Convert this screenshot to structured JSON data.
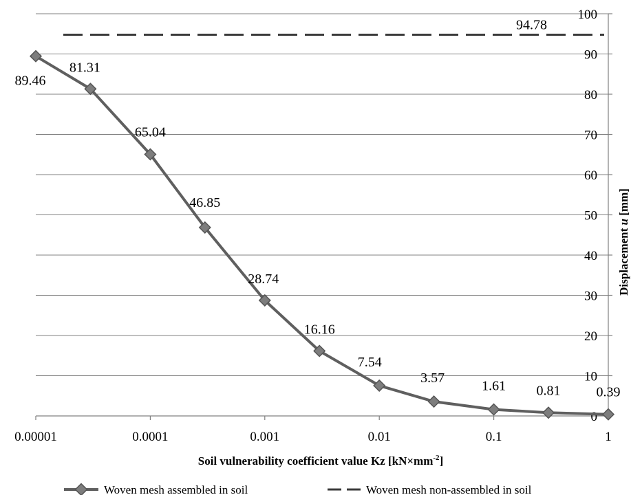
{
  "chart_data": {
    "type": "line",
    "xscale": "log",
    "x": [
      1e-05,
      3e-05,
      0.0001,
      0.0003,
      0.001,
      0.003,
      0.01,
      0.03,
      0.1,
      0.3,
      1
    ],
    "x_tick_values": [
      1e-05,
      0.0001,
      0.001,
      0.01,
      0.1,
      1
    ],
    "x_tick_labels": [
      "0.00001",
      "0.0001",
      "0.001",
      "0.01",
      "0.1",
      "1"
    ],
    "ylim": [
      0,
      100
    ],
    "y_tick_values": [
      0,
      10,
      20,
      30,
      40,
      50,
      60,
      70,
      80,
      90,
      100
    ],
    "y_axis_position": "right",
    "grid": true,
    "legend_position": "bottom",
    "xlabel": "Soil vulnerability coefficient value Kz [kN×mm",
    "xlabel_superscript": "-2",
    "xlabel_suffix": "]",
    "ylabel_prefix": "Displacement ",
    "ylabel_italic": "u",
    "ylabel_suffix": " [mm]",
    "series": [
      {
        "name": "Woven mesh assembled in soil",
        "style": "solid-with-diamond-markers",
        "color": "#5f5f5f",
        "values": [
          89.46,
          81.31,
          65.04,
          46.85,
          28.74,
          16.16,
          7.54,
          3.57,
          1.61,
          0.81,
          0.39
        ],
        "labels": [
          "89.46",
          "81.31",
          "65.04",
          "46.85",
          "28.74",
          "16.16",
          "7.54",
          "3.57",
          "1.61",
          "0.81",
          "0.39"
        ]
      },
      {
        "name": "Woven mesh non-assembled in soil",
        "style": "dashed",
        "color": "#3a3a3a",
        "constant": 94.78,
        "label": "94.78"
      }
    ]
  }
}
